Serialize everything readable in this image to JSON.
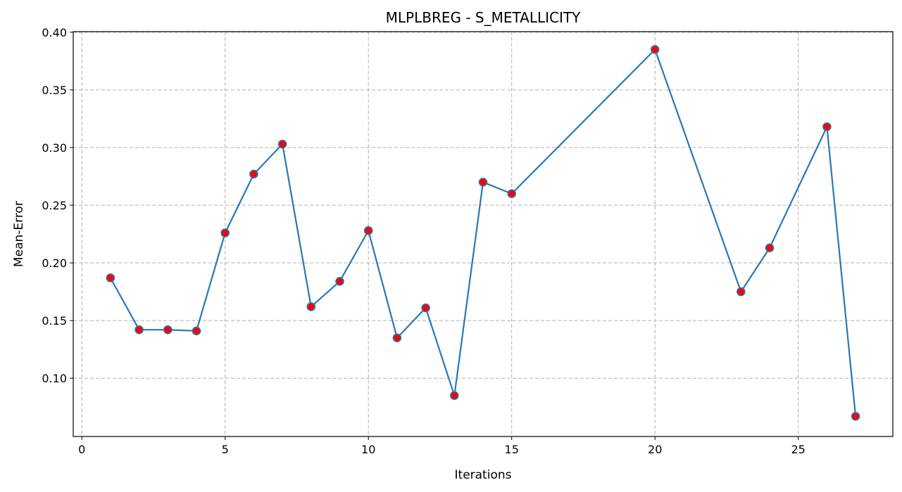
{
  "chart_data": {
    "type": "line",
    "title": "MLPLBREG - S_METALLICITY",
    "xlabel": "Iterations",
    "ylabel": "Mean-Error",
    "xlim": [
      -0.3,
      28.3
    ],
    "ylim": [
      0.0495,
      0.4005
    ],
    "xticks": [
      0,
      5,
      10,
      15,
      20,
      25
    ],
    "yticks": [
      0.1,
      0.15,
      0.2,
      0.25,
      0.3,
      0.35,
      0.4
    ],
    "grid": true,
    "line_color": "#2878b5",
    "marker_face_color": "#ff0000",
    "marker_edge_color": "#2878b5",
    "series": [
      {
        "x": [
          1,
          2,
          3,
          4,
          5,
          6,
          7,
          8,
          9,
          10,
          11,
          12,
          13,
          14,
          15,
          20,
          23,
          24,
          26,
          27
        ],
        "values": [
          0.187,
          0.142,
          0.142,
          0.141,
          0.226,
          0.277,
          0.303,
          0.162,
          0.184,
          0.228,
          0.135,
          0.161,
          0.085,
          0.27,
          0.26,
          0.385,
          0.175,
          0.213,
          0.318,
          0.067
        ]
      }
    ]
  }
}
